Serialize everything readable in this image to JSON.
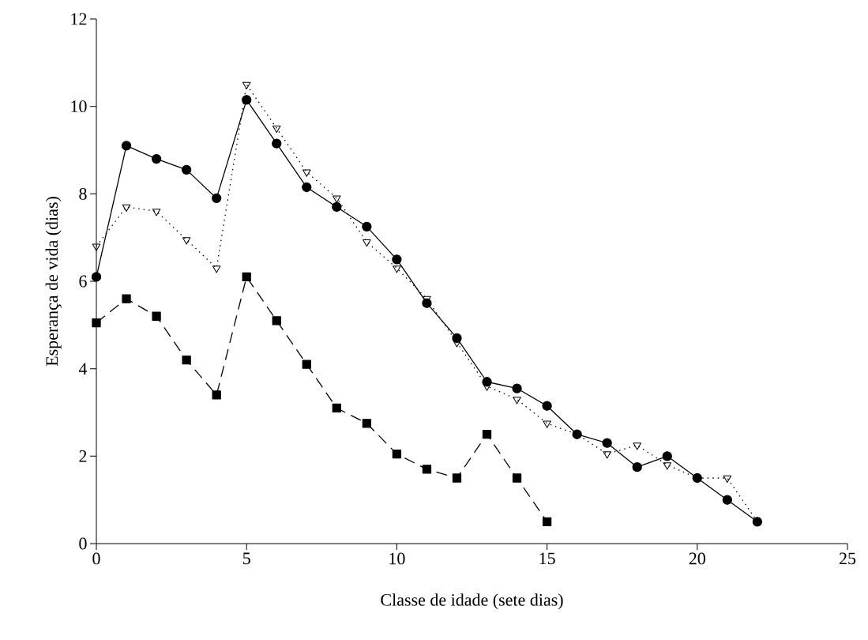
{
  "chart_data": {
    "type": "line",
    "xlabel": "Classe de idade (sete dias)",
    "ylabel": "Esperança de vida (dias)",
    "xlim": [
      0,
      25
    ],
    "xticks": [
      0,
      5,
      10,
      15,
      20,
      25
    ],
    "ylim": [
      0,
      12
    ],
    "yticks": [
      0,
      2,
      4,
      6,
      8,
      10,
      12
    ],
    "grid": false,
    "series": [
      {
        "color": "#000000",
        "marker": "circle",
        "line_style": "solid",
        "x": [
          0,
          1,
          2,
          3,
          4,
          5,
          6,
          7,
          8,
          9,
          10,
          11,
          12,
          13,
          14,
          15,
          16,
          17,
          18,
          19,
          20,
          21,
          22
        ],
        "values": [
          6.1,
          9.1,
          8.8,
          8.55,
          7.9,
          10.15,
          9.15,
          8.15,
          7.7,
          7.25,
          6.5,
          5.5,
          4.7,
          3.7,
          3.55,
          3.15,
          2.5,
          2.3,
          1.75,
          2.0,
          1.5,
          1.0,
          0.5
        ]
      },
      {
        "color": "#000000",
        "marker": "triangle",
        "line_style": "dotted",
        "x": [
          0,
          1,
          2,
          3,
          4,
          5,
          6,
          7,
          8,
          9,
          10,
          11,
          12,
          13,
          14,
          15,
          16,
          17,
          18,
          19,
          20,
          21,
          22
        ],
        "values": [
          6.8,
          7.7,
          7.6,
          6.95,
          6.3,
          10.5,
          9.5,
          8.5,
          7.9,
          6.9,
          6.3,
          5.6,
          4.6,
          3.6,
          3.3,
          2.75,
          2.5,
          2.05,
          2.25,
          1.8,
          1.5,
          1.5,
          0.5
        ]
      },
      {
        "color": "#000000",
        "marker": "square",
        "line_style": "dashed",
        "x": [
          0,
          1,
          2,
          3,
          4,
          5,
          6,
          7,
          8,
          9,
          10,
          11,
          12,
          13,
          14,
          15
        ],
        "values": [
          5.05,
          5.6,
          5.2,
          4.2,
          3.4,
          6.1,
          5.1,
          4.1,
          3.1,
          2.75,
          2.05,
          1.7,
          1.5,
          2.5,
          1.5,
          0.5
        ]
      }
    ]
  }
}
